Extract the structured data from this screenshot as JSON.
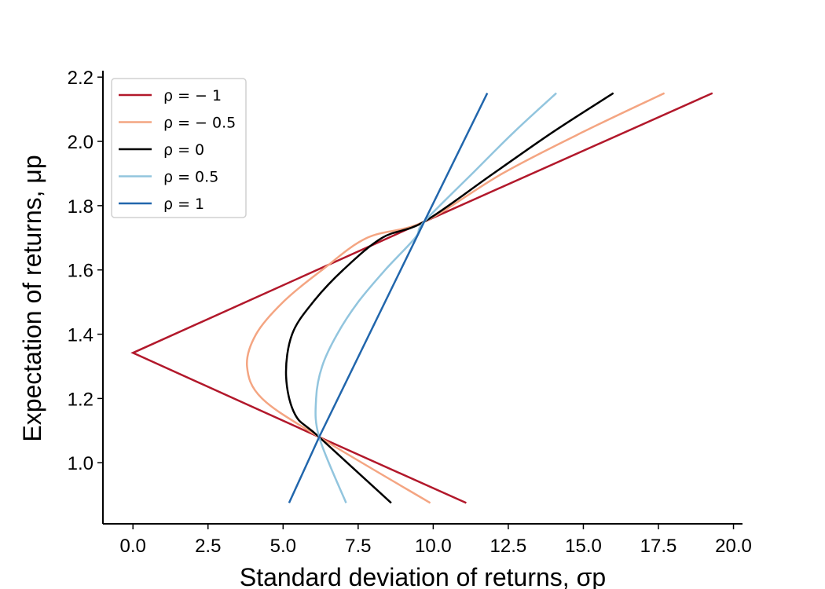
{
  "chart_data": {
    "type": "line",
    "xlabel": "Standard deviation of returns, σp",
    "ylabel": "Expectation of returns, μp",
    "xlim": [
      -1.0,
      20.3
    ],
    "ylim": [
      0.81,
      2.22
    ],
    "xticks": [
      "0.0",
      "2.5",
      "5.0",
      "7.5",
      "10.0",
      "12.5",
      "15.0",
      "17.5",
      "20.0"
    ],
    "yticks": [
      "1.0",
      "1.2",
      "1.4",
      "1.6",
      "1.8",
      "2.0",
      "2.2"
    ],
    "grid": false,
    "legend_position": "upper-left",
    "series": [
      {
        "name": "ρ = − 1",
        "color": "#b2182b",
        "points": [
          [
            11.1,
            0.875
          ],
          [
            6.2,
            1.08
          ],
          [
            0.0,
            1.342
          ],
          [
            9.7,
            1.75
          ],
          [
            19.3,
            2.15
          ]
        ]
      },
      {
        "name": "ρ = − 0.5",
        "color": "#f4a582",
        "points": [
          [
            9.9,
            0.875
          ],
          [
            6.2,
            1.08
          ],
          [
            4.3,
            1.2
          ],
          [
            3.8,
            1.3
          ],
          [
            4.1,
            1.4
          ],
          [
            5.0,
            1.5
          ],
          [
            6.3,
            1.6
          ],
          [
            7.8,
            1.7
          ],
          [
            9.7,
            1.75
          ],
          [
            12.3,
            1.9
          ],
          [
            15.0,
            2.03
          ],
          [
            17.7,
            2.15
          ]
        ]
      },
      {
        "name": "ρ = 0",
        "color": "#000000",
        "points": [
          [
            8.6,
            0.875
          ],
          [
            6.2,
            1.08
          ],
          [
            5.4,
            1.15
          ],
          [
            5.1,
            1.27
          ],
          [
            5.3,
            1.4
          ],
          [
            6.0,
            1.5
          ],
          [
            7.0,
            1.6
          ],
          [
            8.3,
            1.7
          ],
          [
            9.7,
            1.75
          ],
          [
            12.0,
            1.9
          ],
          [
            14.0,
            2.03
          ],
          [
            16.0,
            2.15
          ]
        ]
      },
      {
        "name": "ρ = 0.5",
        "color": "#92c5de",
        "points": [
          [
            7.1,
            0.875
          ],
          [
            6.2,
            1.08
          ],
          [
            6.1,
            1.2
          ],
          [
            6.3,
            1.3
          ],
          [
            6.8,
            1.4
          ],
          [
            7.5,
            1.5
          ],
          [
            8.4,
            1.6
          ],
          [
            9.4,
            1.7
          ],
          [
            9.7,
            1.75
          ],
          [
            11.3,
            1.9
          ],
          [
            12.7,
            2.03
          ],
          [
            14.1,
            2.15
          ]
        ]
      },
      {
        "name": "ρ = 1",
        "color": "#2166ac",
        "points": [
          [
            5.2,
            0.875
          ],
          [
            6.2,
            1.08
          ],
          [
            9.7,
            1.75
          ],
          [
            11.8,
            2.15
          ]
        ]
      }
    ]
  }
}
